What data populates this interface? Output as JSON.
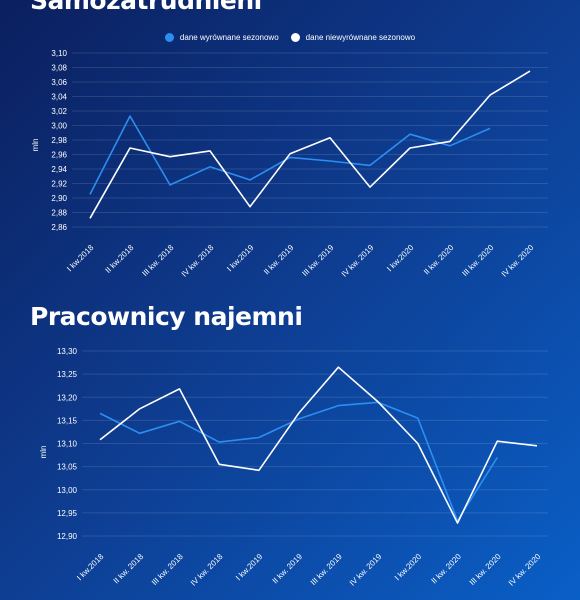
{
  "chart_data": [
    {
      "type": "line",
      "title": "Samozatrudnieni",
      "ylabel": "mln",
      "ylim": [
        2.86,
        3.1
      ],
      "yticks": [
        "3,10",
        "3,08",
        "3,06",
        "3,04",
        "3,02",
        "3,00",
        "2,98",
        "2,96",
        "2,94",
        "2,92",
        "2,90",
        "2,88",
        "2,86"
      ],
      "categories": [
        "I kw.2018",
        "II kw.2018",
        "III kw. 2018",
        "IV kw. 2018",
        "I kw.2019",
        "II kw. 2019",
        "III kw. 2019",
        "IV kw. 2019",
        "I kw.2020",
        "II kw. 2020",
        "III kw. 2020",
        "IV kw. 2020"
      ],
      "series": [
        {
          "name": "dane wyrównane sezonowo",
          "color": "#2b8ef0",
          "values": [
            2.905,
            3.013,
            2.918,
            2.943,
            2.925,
            2.956,
            2.951,
            2.945,
            2.988,
            2.972,
            2.996,
            null
          ]
        },
        {
          "name": "dane niewyrównane sezonowo",
          "color": "#ffffff",
          "values": [
            2.872,
            2.969,
            2.957,
            2.965,
            2.888,
            2.961,
            2.983,
            2.915,
            2.969,
            2.978,
            3.042,
            3.075
          ]
        }
      ],
      "grid": true,
      "legend": "top-center"
    },
    {
      "type": "line",
      "title": "Pracownicy najemni",
      "ylabel": "mln",
      "ylim": [
        12.9,
        13.3
      ],
      "yticks": [
        "13,30",
        "13,25",
        "13,20",
        "13,15",
        "13,10",
        "13,05",
        "13,00",
        "12,95",
        "12,90"
      ],
      "categories": [
        "I kw.2018",
        "II kw. 2018",
        "III kw. 2018",
        "IV kw. 2018",
        "I kw.2019",
        "II kw. 2019",
        "III kw. 2019",
        "IV kw. 2019",
        "I kw.2020",
        "II kw. 2020",
        "III kw. 2020",
        "IV kw. 2020"
      ],
      "series": [
        {
          "name": "dane wyrównane sezonowo",
          "color": "#2b8ef0",
          "values": [
            13.165,
            13.122,
            13.148,
            13.103,
            13.113,
            13.153,
            13.182,
            13.189,
            13.155,
            12.933,
            13.07,
            null
          ]
        },
        {
          "name": "dane niewyrównane sezonowo",
          "color": "#ffffff",
          "values": [
            13.108,
            13.175,
            13.218,
            13.055,
            13.042,
            13.165,
            13.265,
            13.19,
            13.1,
            12.928,
            13.105,
            13.095
          ]
        }
      ],
      "grid": true
    }
  ]
}
